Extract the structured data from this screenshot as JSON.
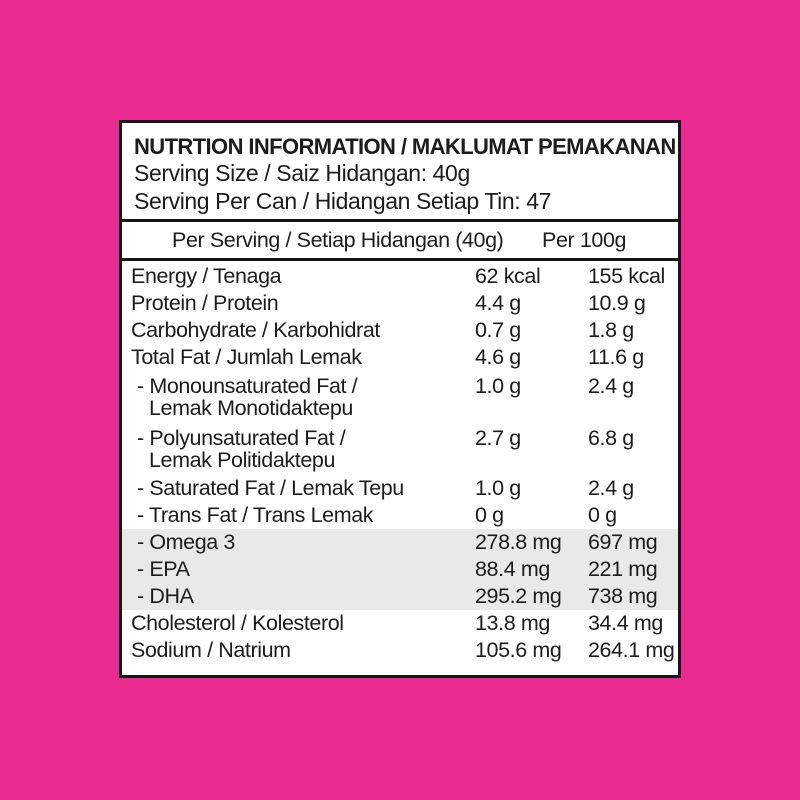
{
  "page": {
    "background_color": "#EC2B92"
  },
  "label": {
    "title": "NUTRTION INFORMATION / MAKLUMAT PEMAKANAN",
    "serving_size": "Serving Size / Saiz Hidangan: 40g",
    "serving_per_can": "Serving Per Can / Hidangan Setiap Tin: 47",
    "columns": {
      "per_serving": "Per Serving / Setiap Hidangan (40g)",
      "per_100g": "Per 100g"
    },
    "rows": [
      {
        "label": "Energy / Tenaga",
        "per_serving": "62 kcal",
        "per_100g": "155 kcal",
        "indent": false,
        "shaded": false
      },
      {
        "label": "Protein / Protein",
        "per_serving": "4.4 g",
        "per_100g": "10.9 g",
        "indent": false,
        "shaded": false
      },
      {
        "label": "Carbohydrate / Karbohidrat",
        "per_serving": "0.7 g",
        "per_100g": "1.8 g",
        "indent": false,
        "shaded": false
      },
      {
        "label": "Total Fat / Jumlah Lemak",
        "per_serving": "4.6 g",
        "per_100g": "11.6 g",
        "indent": false,
        "shaded": false
      },
      {
        "label": "- Monounsaturated Fat /",
        "label2": "Lemak Monotidaktepu",
        "per_serving": "1.0 g",
        "per_100g": "2.4 g",
        "indent": true,
        "shaded": false
      },
      {
        "label": "- Polyunsaturated Fat /",
        "label2": "Lemak Politidaktepu",
        "per_serving": "2.7 g",
        "per_100g": "6.8 g",
        "indent": true,
        "shaded": false
      },
      {
        "label": "- Saturated Fat / Lemak Tepu",
        "per_serving": "1.0 g",
        "per_100g": "2.4 g",
        "indent": true,
        "shaded": false
      },
      {
        "label": "- Trans Fat / Trans Lemak",
        "per_serving": "0 g",
        "per_100g": "0 g",
        "indent": true,
        "shaded": false
      },
      {
        "label": "- Omega 3",
        "per_serving": "278.8 mg",
        "per_100g": "697 mg",
        "indent": true,
        "shaded": true
      },
      {
        "label": "- EPA",
        "per_serving": "88.4 mg",
        "per_100g": "221 mg",
        "indent": true,
        "shaded": true
      },
      {
        "label": "- DHA",
        "per_serving": "295.2 mg",
        "per_100g": "738 mg",
        "indent": true,
        "shaded": true
      },
      {
        "label": "Cholesterol / Kolesterol",
        "per_serving": "13.8 mg",
        "per_100g": "34.4 mg",
        "indent": false,
        "shaded": false
      },
      {
        "label": "Sodium / Natrium",
        "per_serving": "105.6 mg",
        "per_100g": "264.1 mg",
        "indent": false,
        "shaded": false
      }
    ],
    "colors": {
      "background_pink": "#EC2B92",
      "label_background": "#FFFFFF",
      "border_black": "#161616",
      "shaded_row_gray": "#E9E9E9"
    }
  }
}
